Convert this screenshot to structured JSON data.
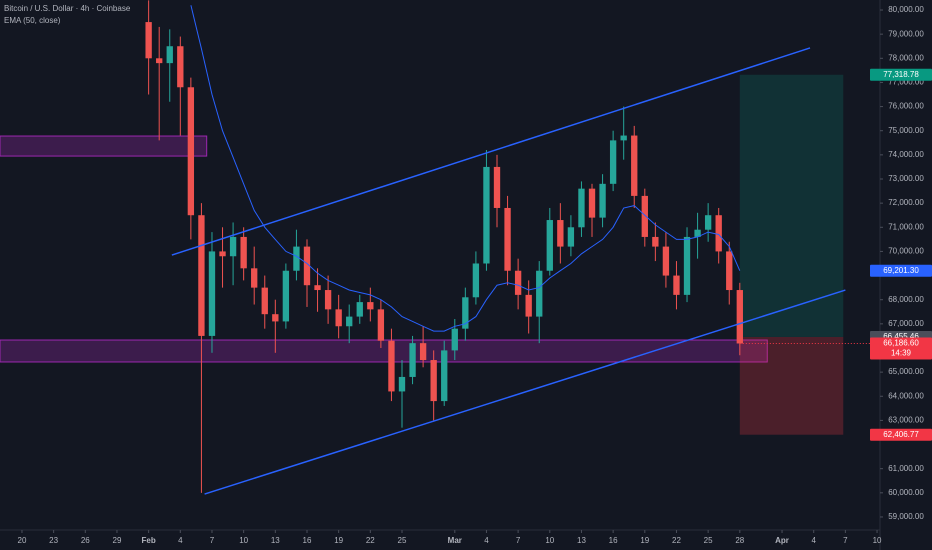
{
  "chart_data": {
    "type": "candlestick",
    "title": "Bitcoin / U.S. Dollar · 4h · Coinbase",
    "x": [
      12,
      13,
      14,
      15,
      16,
      17,
      18,
      19,
      20,
      21,
      22,
      23,
      24,
      25,
      26,
      27,
      28,
      29,
      30,
      31,
      32,
      33,
      34,
      35,
      36,
      37,
      38,
      39,
      40,
      41,
      42,
      43,
      44,
      45,
      46,
      47,
      48,
      49,
      50,
      51,
      52,
      53,
      54,
      55,
      56,
      57,
      58,
      59,
      60,
      61,
      62,
      63,
      64,
      65,
      66,
      67,
      68
    ],
    "open": [
      79500,
      78000,
      77800,
      78500,
      76800,
      71500,
      66500,
      70000,
      69800,
      70600,
      69300,
      68500,
      67400,
      67100,
      69200,
      70200,
      68600,
      68400,
      67600,
      66900,
      67300,
      67900,
      67600,
      66300,
      64200,
      64800,
      66200,
      65500,
      63800,
      65900,
      66800,
      68100,
      69500,
      73500,
      71800,
      69200,
      68200,
      67300,
      69200,
      71300,
      70200,
      71000,
      72600,
      71400,
      72800,
      74600,
      74800,
      72300,
      70600,
      70200,
      69000,
      68200,
      70600,
      70900,
      71500,
      70000,
      68400
    ],
    "high": [
      80400,
      79300,
      79200,
      78900,
      77200,
      72000,
      70800,
      71000,
      71200,
      71000,
      70200,
      69000,
      68000,
      69500,
      70900,
      70500,
      69300,
      69000,
      68200,
      67800,
      68200,
      68500,
      68000,
      66800,
      65500,
      66500,
      66900,
      65900,
      66300,
      67200,
      68500,
      70000,
      74200,
      74000,
      72300,
      69700,
      68800,
      69600,
      71800,
      72000,
      71500,
      72900,
      72800,
      73200,
      75000,
      76000,
      75200,
      72600,
      71200,
      70800,
      69600,
      71000,
      71600,
      72000,
      71800,
      70400,
      68700
    ],
    "low": [
      76500,
      74600,
      76200,
      74800,
      70500,
      60000,
      65800,
      68500,
      68600,
      68800,
      67800,
      66800,
      65800,
      66800,
      68800,
      67700,
      67500,
      67000,
      66400,
      66200,
      67000,
      67100,
      66000,
      63800,
      62700,
      64500,
      65200,
      63000,
      63600,
      65500,
      66300,
      67800,
      69200,
      71000,
      68600,
      67600,
      66600,
      66200,
      69000,
      69500,
      69800,
      70600,
      70600,
      71000,
      72500,
      73800,
      71800,
      70200,
      69600,
      68500,
      67600,
      67900,
      69700,
      70400,
      69500,
      67800,
      65700
    ],
    "close": [
      78000,
      77800,
      78500,
      76800,
      71500,
      66500,
      70000,
      69800,
      70600,
      69300,
      68500,
      67400,
      67100,
      69200,
      70200,
      68600,
      68400,
      67600,
      66900,
      67300,
      67900,
      67600,
      66300,
      64200,
      64800,
      66200,
      65500,
      63800,
      65900,
      66800,
      68100,
      69500,
      73500,
      71800,
      69200,
      68200,
      67300,
      69200,
      71300,
      70200,
      71000,
      72600,
      71400,
      72800,
      74600,
      74800,
      72300,
      70600,
      70200,
      69000,
      68200,
      70600,
      70900,
      71500,
      70000,
      68400,
      66186.6
    ],
    "up_color": "#26a69a",
    "down_color": "#ef5350",
    "series": [
      {
        "name": "EMA (50, close)",
        "color": "#2962ff",
        "values": [
          null,
          null,
          null,
          null,
          80200,
          78400,
          76500,
          75000,
          73900,
          72800,
          71700,
          71000,
          70500,
          70000,
          69800,
          69500,
          69100,
          68800,
          68600,
          68400,
          68300,
          68200,
          68000,
          67700,
          67300,
          67100,
          66900,
          66700,
          66700,
          66900,
          67000,
          67300,
          68000,
          68600,
          68700,
          68600,
          68400,
          68500,
          68900,
          69200,
          69500,
          69900,
          70200,
          70500,
          71000,
          71800,
          71900,
          71500,
          71100,
          70800,
          70500,
          70500,
          70600,
          70800,
          70700,
          70200,
          69201.3
        ]
      }
    ],
    "trendlines": [
      {
        "color": "#2962ff",
        "x": [
          14.2,
          74.65
        ],
        "y": [
          69850,
          78430
        ]
      },
      {
        "color": "#2962ff",
        "x": [
          17.3,
          78
        ],
        "y": [
          59950,
          68400
        ]
      }
    ],
    "zones": [
      {
        "color": "#9c27b0",
        "x": [
          -2.08,
          17.5
        ],
        "y": [
          73950,
          74780
        ]
      },
      {
        "color": "#9c27b0",
        "x": [
          -2.08,
          70.6
        ],
        "y": [
          65420,
          66330
        ]
      }
    ],
    "position": {
      "x": [
        68,
        77.8
      ],
      "entry": 66455.46,
      "target": 77318.78,
      "stop": 62406.77
    },
    "price_labels": [
      {
        "value": 77318.78,
        "label": "77,318.78",
        "color": "#089981"
      },
      {
        "value": 69201.3,
        "label": "69,201.30",
        "color": "#2962ff"
      },
      {
        "value": 66455.46,
        "label": "66,455.46",
        "color": "#4a4e5a"
      },
      {
        "value": 66186.6,
        "label": "66,186.60",
        "color": "#f23645",
        "countdown": "14:39"
      },
      {
        "value": 62406.77,
        "label": "62,406.77",
        "color": "#f23645"
      }
    ],
    "xlim": [
      -2.08,
      81.28
    ],
    "xticks": [
      {
        "value": 0,
        "label": "20"
      },
      {
        "value": 3,
        "label": "23"
      },
      {
        "value": 6,
        "label": "26"
      },
      {
        "value": 9,
        "label": "29"
      },
      {
        "value": 12,
        "label": "Feb"
      },
      {
        "value": 15,
        "label": "4"
      },
      {
        "value": 18,
        "label": "7"
      },
      {
        "value": 21,
        "label": "10"
      },
      {
        "value": 24,
        "label": "13"
      },
      {
        "value": 27,
        "label": "16"
      },
      {
        "value": 30,
        "label": "19"
      },
      {
        "value": 33,
        "label": "22"
      },
      {
        "value": 36,
        "label": "25"
      },
      {
        "value": 41,
        "label": "Mar"
      },
      {
        "value": 44,
        "label": "4"
      },
      {
        "value": 47,
        "label": "7"
      },
      {
        "value": 50,
        "label": "10"
      },
      {
        "value": 53,
        "label": "13"
      },
      {
        "value": 56,
        "label": "16"
      },
      {
        "value": 59,
        "label": "19"
      },
      {
        "value": 62,
        "label": "22"
      },
      {
        "value": 65,
        "label": "25"
      },
      {
        "value": 68,
        "label": "28"
      },
      {
        "value": 72,
        "label": "Apr"
      },
      {
        "value": 75,
        "label": "4"
      },
      {
        "value": 78,
        "label": "7"
      },
      {
        "value": 81,
        "label": "10"
      }
    ],
    "ylim": [
      58460,
      80415
    ],
    "yticks": [
      {
        "value": 80000,
        "label": "80,000.00"
      },
      {
        "value": 79000,
        "label": "79,000.00"
      },
      {
        "value": 78000,
        "label": "78,000.00"
      },
      {
        "value": 77000,
        "label": "77,000.00"
      },
      {
        "value": 76000,
        "label": "76,000.00"
      },
      {
        "value": 75000,
        "label": "75,000.00"
      },
      {
        "value": 74000,
        "label": "74,000.00"
      },
      {
        "value": 73000,
        "label": "73,000.00"
      },
      {
        "value": 72000,
        "label": "72,000.00"
      },
      {
        "value": 71000,
        "label": "71,000.00"
      },
      {
        "value": 70000,
        "label": "70,000.00"
      },
      {
        "value": 68000,
        "label": "68,000.00"
      },
      {
        "value": 67000,
        "label": "67,000.00"
      },
      {
        "value": 65000,
        "label": "65,000.00"
      },
      {
        "value": 64000,
        "label": "64,000.00"
      },
      {
        "value": 63000,
        "label": "63,000.00"
      },
      {
        "value": 61000,
        "label": "61,000.00"
      },
      {
        "value": 60000,
        "label": "60,000.00"
      },
      {
        "value": 59000,
        "label": "59,000.00"
      }
    ],
    "grid": false
  }
}
